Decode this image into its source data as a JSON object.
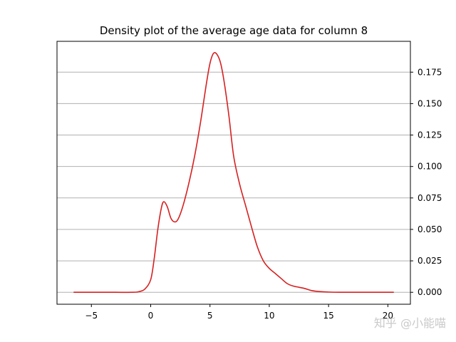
{
  "chart_data": {
    "type": "line",
    "title": "Density plot of the average age data for column 8",
    "xlabel": "",
    "ylabel": "",
    "xlim": [
      -7.9,
      21.9
    ],
    "ylim": [
      -0.0095,
      0.1995
    ],
    "xticks": [
      -5,
      0,
      5,
      10,
      15,
      20
    ],
    "yticks": [
      0.0,
      0.025,
      0.05,
      0.075,
      0.1,
      0.125,
      0.15,
      0.175
    ],
    "ytick_labels": [
      "0.000",
      "0.025",
      "0.050",
      "0.075",
      "0.100",
      "0.125",
      "0.150",
      "0.175"
    ],
    "y_axis_side": "right",
    "grid": "horizontal",
    "line_color": "#d62020",
    "series": [
      {
        "x": [
          -6.5,
          -5,
          -3,
          -1.5,
          -1,
          -0.5,
          0,
          0.3,
          0.6,
          0.9,
          1.1,
          1.4,
          1.7,
          2.0,
          2.3,
          2.7,
          3.2,
          3.7,
          4.2,
          4.7,
          5.0,
          5.3,
          5.6,
          5.9,
          6.2,
          6.6,
          7.0,
          7.5,
          8.0,
          8.5,
          9.0,
          9.5,
          10.0,
          10.5,
          11.0,
          11.5,
          12.0,
          12.5,
          13.0,
          13.5,
          14.0,
          15.0,
          16.0,
          18.0,
          20.5
        ],
        "y": [
          0.0,
          0.0,
          0.0,
          0.0,
          0.0005,
          0.0025,
          0.01,
          0.027,
          0.05,
          0.067,
          0.072,
          0.068,
          0.059,
          0.056,
          0.058,
          0.068,
          0.086,
          0.108,
          0.135,
          0.166,
          0.182,
          0.19,
          0.189,
          0.182,
          0.167,
          0.14,
          0.108,
          0.086,
          0.069,
          0.052,
          0.036,
          0.025,
          0.019,
          0.015,
          0.011,
          0.007,
          0.005,
          0.004,
          0.003,
          0.0015,
          0.0008,
          0.0002,
          0.0,
          0.0,
          0.0
        ]
      }
    ]
  },
  "watermark": "知乎 @小能喵"
}
